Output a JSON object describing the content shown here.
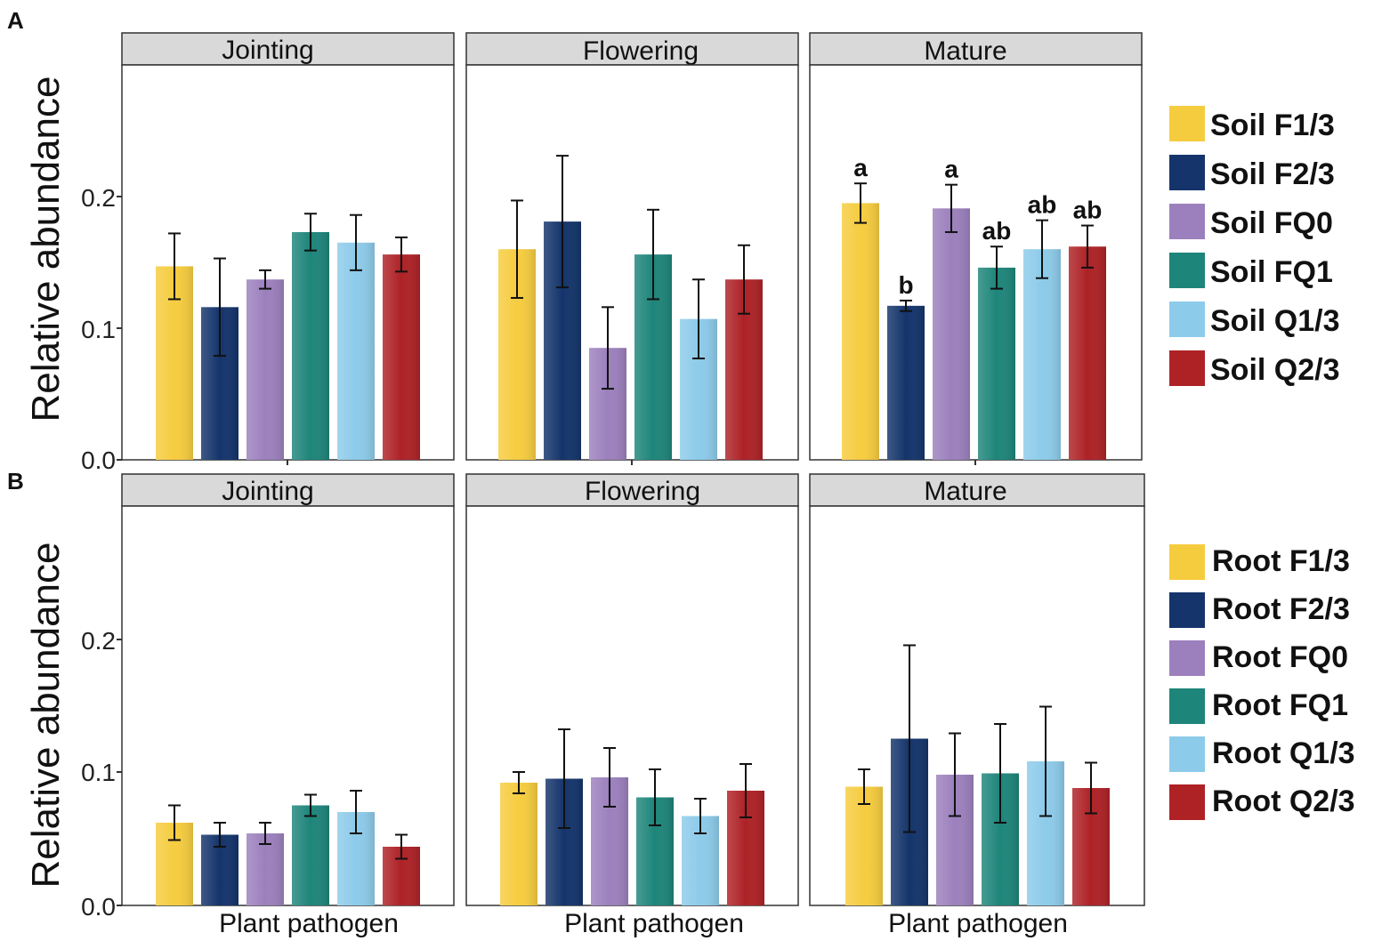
{
  "chart_data": [
    {
      "type": "bar",
      "panel_label": "A",
      "ylabel": "Relative abundance",
      "xlabel": "",
      "ylim": [
        0,
        0.3
      ],
      "yticks": [
        "0.0",
        "0.1",
        "0.2"
      ],
      "facets": [
        "Jointing",
        "Flowering",
        "Mature"
      ],
      "legend_position": "right",
      "series": [
        {
          "name": "Soil F1/3",
          "color": "#F6CC3F",
          "values": [
            0.147,
            0.16,
            0.195
          ],
          "errors": [
            0.025,
            0.037,
            0.015
          ],
          "labels": [
            "",
            "",
            "a"
          ]
        },
        {
          "name": "Soil F2/3",
          "color": "#14346B",
          "values": [
            0.116,
            0.181,
            0.117
          ],
          "errors": [
            0.037,
            0.05,
            0.004
          ],
          "labels": [
            "",
            "",
            "b"
          ]
        },
        {
          "name": "Soil FQ0",
          "color": "#9C80BD",
          "values": [
            0.137,
            0.085,
            0.191
          ],
          "errors": [
            0.007,
            0.031,
            0.018
          ],
          "labels": [
            "",
            "",
            "a"
          ]
        },
        {
          "name": "Soil FQ1",
          "color": "#1E857A",
          "values": [
            0.173,
            0.156,
            0.146
          ],
          "errors": [
            0.014,
            0.034,
            0.016
          ],
          "labels": [
            "",
            "",
            "ab"
          ]
        },
        {
          "name": "Soil Q1/3",
          "color": "#8DCBEA",
          "values": [
            0.165,
            0.107,
            0.16
          ],
          "errors": [
            0.021,
            0.03,
            0.022
          ],
          "labels": [
            "",
            "",
            "ab"
          ]
        },
        {
          "name": "Soil Q2/3",
          "color": "#AE2226",
          "values": [
            0.156,
            0.137,
            0.162
          ],
          "errors": [
            0.013,
            0.026,
            0.016
          ],
          "labels": [
            "",
            "",
            "ab"
          ]
        }
      ]
    },
    {
      "type": "bar",
      "panel_label": "B",
      "ylabel": "Relative abundance",
      "xlabel": "",
      "category": "Plant pathogen",
      "ylim": [
        0,
        0.3
      ],
      "yticks": [
        "0.0",
        "0.1",
        "0.2"
      ],
      "facets": [
        "Jointing",
        "Flowering",
        "Mature"
      ],
      "legend_position": "right",
      "series": [
        {
          "name": "Root F1/3",
          "color": "#F6CC3F",
          "values": [
            0.062,
            0.092,
            0.089
          ],
          "errors": [
            0.013,
            0.008,
            0.013
          ],
          "labels": [
            "",
            "",
            ""
          ]
        },
        {
          "name": "Root F2/3",
          "color": "#14346B",
          "values": [
            0.053,
            0.095,
            0.125
          ],
          "errors": [
            0.009,
            0.037,
            0.07
          ],
          "labels": [
            "",
            "",
            ""
          ]
        },
        {
          "name": "Root FQ0",
          "color": "#9C80BD",
          "values": [
            0.054,
            0.096,
            0.098
          ],
          "errors": [
            0.008,
            0.022,
            0.031
          ],
          "labels": [
            "",
            "",
            ""
          ]
        },
        {
          "name": "Root FQ1",
          "color": "#1E857A",
          "values": [
            0.075,
            0.081,
            0.099
          ],
          "errors": [
            0.008,
            0.021,
            0.037
          ],
          "labels": [
            "",
            "",
            ""
          ]
        },
        {
          "name": "Root Q1/3",
          "color": "#8DCBEA",
          "values": [
            0.07,
            0.067,
            0.108
          ],
          "errors": [
            0.016,
            0.013,
            0.041
          ],
          "labels": [
            "",
            "",
            ""
          ]
        },
        {
          "name": "Root Q2/3",
          "color": "#AE2226",
          "values": [
            0.044,
            0.086,
            0.088
          ],
          "errors": [
            0.009,
            0.02,
            0.019
          ],
          "labels": [
            "",
            "",
            ""
          ]
        }
      ]
    }
  ]
}
